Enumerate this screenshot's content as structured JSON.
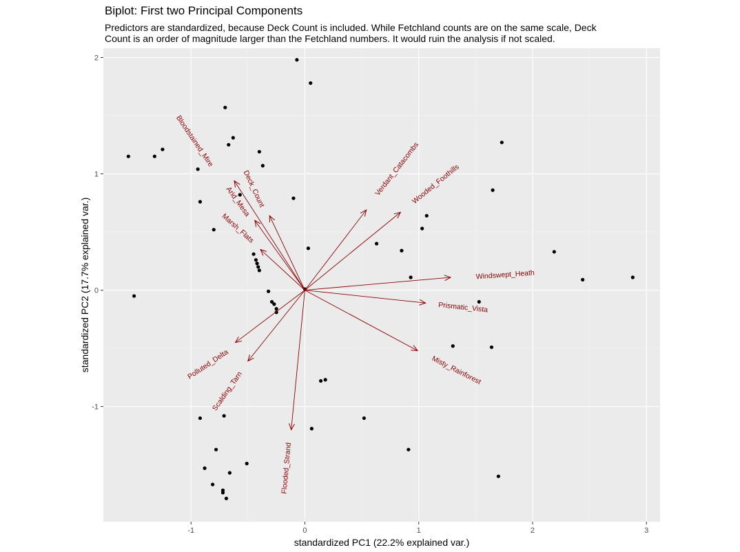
{
  "chart_data": {
    "type": "scatter",
    "title": "Biplot: First two Principal Components",
    "subtitle_lines": [
      "Predictors are standardized, because Deck Count is included. While Fetchland counts are on the same scale, Deck",
      "Count is an order of magnitude larger than the Fetchland numbers. It would ruin the analysis if not scaled."
    ],
    "xlabel": "standardized PC1 (22.2% explained var.)",
    "ylabel": "standardized PC2 (17.7% explained var.)",
    "xlim": [
      -1.77,
      3.12
    ],
    "ylim": [
      -1.99,
      2.08
    ],
    "x_ticks": [
      -1,
      0,
      1,
      2,
      3
    ],
    "y_ticks": [
      -1,
      0,
      1,
      2
    ],
    "grid": true,
    "points": [
      {
        "x": -0.07,
        "y": 1.98
      },
      {
        "x": 0.05,
        "y": 1.78
      },
      {
        "x": -0.7,
        "y": 1.57
      },
      {
        "x": -0.63,
        "y": 1.31
      },
      {
        "x": -0.67,
        "y": 1.25
      },
      {
        "x": -1.25,
        "y": 1.21
      },
      {
        "x": -1.55,
        "y": 1.15
      },
      {
        "x": -1.32,
        "y": 1.15
      },
      {
        "x": -0.4,
        "y": 1.19
      },
      {
        "x": -0.37,
        "y": 1.07
      },
      {
        "x": -0.94,
        "y": 1.04
      },
      {
        "x": -0.57,
        "y": 0.82
      },
      {
        "x": -0.92,
        "y": 0.76
      },
      {
        "x": -0.1,
        "y": 0.79
      },
      {
        "x": -0.8,
        "y": 0.52
      },
      {
        "x": 1.73,
        "y": 1.27
      },
      {
        "x": 1.65,
        "y": 0.86
      },
      {
        "x": 1.07,
        "y": 0.64
      },
      {
        "x": 1.03,
        "y": 0.53
      },
      {
        "x": 0.63,
        "y": 0.4
      },
      {
        "x": 0.85,
        "y": 0.34
      },
      {
        "x": 0.03,
        "y": 0.36
      },
      {
        "x": -0.45,
        "y": 0.31
      },
      {
        "x": -0.43,
        "y": 0.26
      },
      {
        "x": -0.42,
        "y": 0.23
      },
      {
        "x": -0.41,
        "y": 0.2
      },
      {
        "x": -0.4,
        "y": 0.17
      },
      {
        "x": -0.32,
        "y": -0.01
      },
      {
        "x": -0.29,
        "y": -0.1
      },
      {
        "x": -0.27,
        "y": -0.12
      },
      {
        "x": -0.25,
        "y": -0.16
      },
      {
        "x": -0.25,
        "y": -0.19
      },
      {
        "x": 0.0,
        "y": 0.01
      },
      {
        "x": 0.93,
        "y": 0.11
      },
      {
        "x": 1.53,
        "y": -0.1
      },
      {
        "x": 2.19,
        "y": 0.33
      },
      {
        "x": 2.44,
        "y": 0.09
      },
      {
        "x": 2.88,
        "y": 0.11
      },
      {
        "x": -1.5,
        "y": -0.05
      },
      {
        "x": 1.3,
        "y": -0.48
      },
      {
        "x": 1.64,
        "y": -0.49
      },
      {
        "x": 0.14,
        "y": -0.78
      },
      {
        "x": 0.18,
        "y": -0.77
      },
      {
        "x": 0.52,
        "y": -1.1
      },
      {
        "x": 0.06,
        "y": -1.19
      },
      {
        "x": 0.91,
        "y": -1.37
      },
      {
        "x": 1.7,
        "y": -1.6
      },
      {
        "x": -0.92,
        "y": -1.1
      },
      {
        "x": -0.71,
        "y": -1.08
      },
      {
        "x": -0.78,
        "y": -1.37
      },
      {
        "x": -0.51,
        "y": -1.49
      },
      {
        "x": -0.88,
        "y": -1.53
      },
      {
        "x": -0.66,
        "y": -1.57
      },
      {
        "x": -0.81,
        "y": -1.67
      },
      {
        "x": -0.72,
        "y": -1.72
      },
      {
        "x": -0.72,
        "y": -1.74
      },
      {
        "x": -0.69,
        "y": -1.79
      }
    ],
    "loadings": [
      {
        "name": "Bloodstained_Mire",
        "x": -0.62,
        "y": 0.94,
        "lx": -0.97,
        "ly": 1.28,
        "angle": 56
      },
      {
        "name": "Deck_Count",
        "x": -0.31,
        "y": 0.64,
        "lx": -0.45,
        "ly": 0.87,
        "angle": 65
      },
      {
        "name": "Arid_Mesa",
        "x": -0.44,
        "y": 0.6,
        "lx": -0.59,
        "ly": 0.76,
        "angle": 54
      },
      {
        "name": "Marsh_Flats",
        "x": -0.39,
        "y": 0.35,
        "lx": -0.59,
        "ly": 0.53,
        "angle": 42
      },
      {
        "name": "Verdant_Catacombs",
        "x": 0.54,
        "y": 0.69,
        "lx": 0.81,
        "ly": 1.04,
        "angle": -52
      },
      {
        "name": "Wooded_Foothills",
        "x": 0.84,
        "y": 0.67,
        "lx": 1.15,
        "ly": 0.91,
        "angle": -39
      },
      {
        "name": "Windswept_Heath",
        "x": 1.28,
        "y": 0.11,
        "lx": 1.76,
        "ly": 0.13,
        "angle": -4
      },
      {
        "name": "Prismatic_Vista",
        "x": 1.06,
        "y": -0.11,
        "lx": 1.39,
        "ly": -0.15,
        "angle": 6
      },
      {
        "name": "Misty_Rainforest",
        "x": 0.99,
        "y": -0.52,
        "lx": 1.33,
        "ly": -0.69,
        "angle": 27
      },
      {
        "name": "Polluted_Delta",
        "x": -0.61,
        "y": -0.45,
        "lx": -0.85,
        "ly": -0.64,
        "angle": -34
      },
      {
        "name": "Scalding_Tarn",
        "x": -0.5,
        "y": -0.61,
        "lx": -0.68,
        "ly": -0.87,
        "angle": -55
      },
      {
        "name": "Flooded_Strand",
        "x": -0.12,
        "y": -1.2,
        "lx": -0.16,
        "ly": -1.53,
        "angle": -85
      }
    ],
    "colors": {
      "panel": "#ebebeb",
      "grid_major": "#ffffff",
      "grid_minor": "#f5f5f5",
      "points": "#000000",
      "loadings": "#8b0000"
    }
  }
}
